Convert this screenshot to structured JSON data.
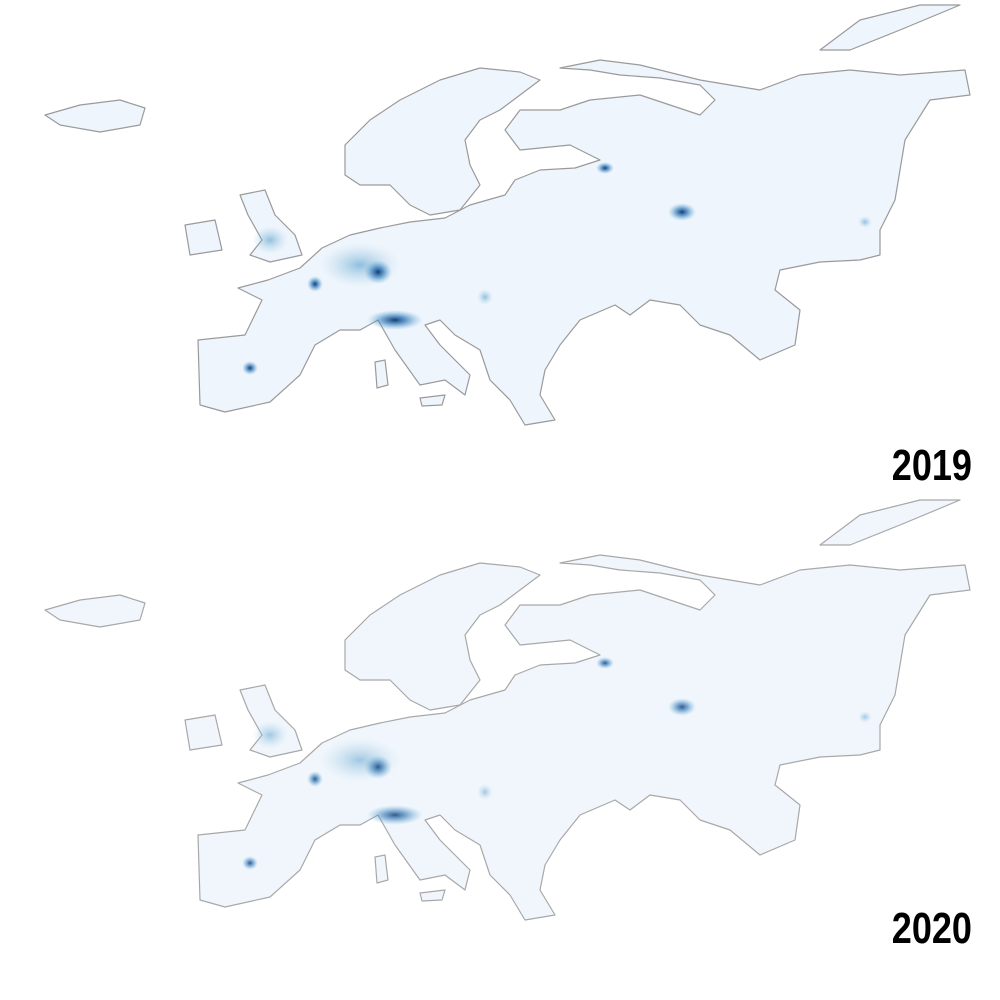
{
  "maps": [
    {
      "label": "2019"
    },
    {
      "label": "2020"
    }
  ]
}
